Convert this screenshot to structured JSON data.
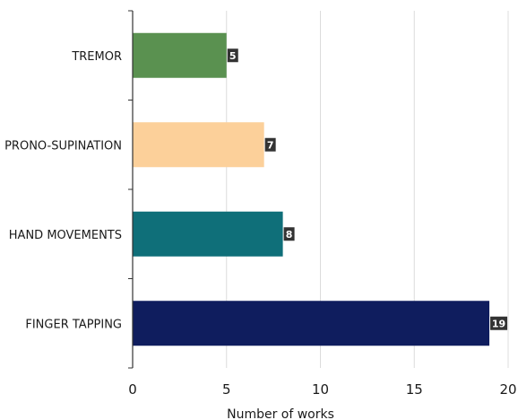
{
  "chart_data": {
    "type": "bar",
    "orientation": "horizontal",
    "title": "",
    "xlabel": "Number of works",
    "ylabel": "",
    "xlim": [
      0,
      20
    ],
    "xticks": [
      0,
      5,
      10,
      15,
      20
    ],
    "grid": "vertical",
    "legend": "none",
    "categories": [
      "TREMOR",
      "PRONO-SUPINATION",
      "HAND MOVEMENTS",
      "FINGER TAPPING"
    ],
    "values": [
      5,
      7,
      8,
      19
    ],
    "colors": [
      "#5a9150",
      "#fcd09a",
      "#0f6f79",
      "#0f1d5e"
    ],
    "data_labels": [
      "5",
      "7",
      "8",
      "19"
    ],
    "label_box_color": "#333333"
  }
}
